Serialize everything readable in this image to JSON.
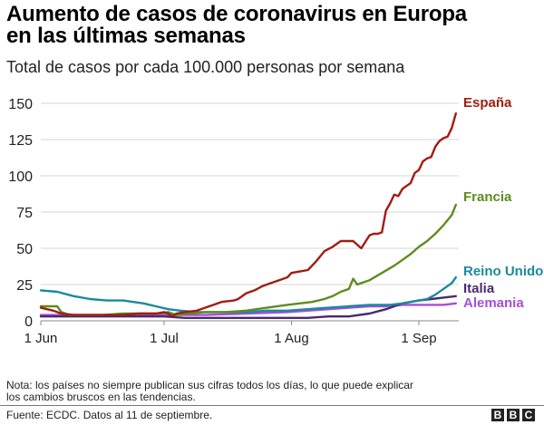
{
  "title_line1": "Aumento de casos de coronavirus en Europa",
  "title_line2": "en las últimas semanas",
  "subtitle": "Total de casos por cada 100.000 personas por semana",
  "note_line1": "Nota: los países no siempre publican sus cifras todos los días, lo que puede explicar",
  "note_line2": "los cambios bruscos en las tendencias.",
  "source": "Fuente: ECDC. Datos al 11 de septiembre.",
  "logo": [
    "B",
    "B",
    "C"
  ],
  "chart_data": {
    "type": "line",
    "title": "Aumento de casos de coronavirus en Europa en las últimas semanas",
    "subtitle": "Total de casos por cada 100.000 personas por semana",
    "xlabel": "",
    "ylabel": "",
    "x_unit": "days since 1 Jun",
    "xlim": [
      0,
      101
    ],
    "ylim": [
      0,
      150
    ],
    "yticks": [
      0,
      25,
      50,
      75,
      100,
      125,
      150
    ],
    "ytick_labels": [
      "0",
      "25",
      "50",
      "75",
      "100",
      "125",
      "150"
    ],
    "xticks": [
      0,
      30,
      61,
      92
    ],
    "xtick_labels": [
      "1 Jun",
      "1 Jul",
      "1 Aug",
      "1 Sep"
    ],
    "grid": true,
    "legend": "direct-labels-right",
    "series": [
      {
        "name": "España",
        "color": "#a01d12",
        "x": [
          0,
          3,
          5,
          8,
          12,
          16,
          20,
          24,
          28,
          30,
          31,
          32,
          33,
          35,
          38,
          41,
          44,
          47,
          48,
          50,
          52,
          54,
          56,
          58,
          60,
          61,
          63,
          65,
          67,
          69,
          71,
          73,
          74,
          76,
          78,
          80,
          81,
          82,
          83,
          84,
          85,
          86,
          87,
          88,
          89,
          90,
          91,
          92,
          93,
          94,
          95,
          96,
          97,
          98,
          99,
          100,
          101
        ],
        "y": [
          9,
          7,
          5,
          4,
          4,
          4,
          4,
          5,
          5,
          6,
          5,
          3,
          5,
          6,
          7,
          10,
          13,
          14,
          15,
          19,
          21,
          24,
          26,
          28,
          30,
          33,
          34,
          35,
          41,
          48,
          51,
          55,
          55,
          55,
          50,
          59,
          60,
          60,
          61,
          76,
          81,
          87,
          86,
          91,
          93,
          95,
          102,
          104,
          110,
          112,
          113,
          120,
          124,
          126,
          127,
          133,
          143
        ]
      },
      {
        "name": "Francia",
        "color": "#5e8c1e",
        "x": [
          0,
          2,
          4,
          5,
          7,
          10,
          15,
          20,
          25,
          29,
          31,
          33,
          36,
          40,
          45,
          50,
          55,
          60,
          63,
          66,
          69,
          71,
          73,
          75,
          76,
          77,
          78,
          80,
          83,
          86,
          88,
          90,
          92,
          94,
          96,
          98,
          100,
          101
        ],
        "y": [
          10,
          10,
          10,
          6,
          4,
          4,
          4,
          5,
          5,
          5,
          6,
          4,
          5,
          6,
          6,
          7,
          9,
          11,
          12,
          13,
          15,
          17,
          20,
          22,
          29,
          25,
          26,
          28,
          33,
          38,
          42,
          46,
          51,
          55,
          60,
          66,
          73,
          80
        ]
      },
      {
        "name": "Reino Unido",
        "color": "#1a8a9e",
        "x": [
          0,
          4,
          8,
          12,
          16,
          20,
          25,
          28,
          31,
          34,
          38,
          45,
          50,
          55,
          60,
          65,
          70,
          75,
          80,
          85,
          88,
          90,
          92,
          94,
          96,
          98,
          100,
          101
        ],
        "y": [
          21,
          20,
          17,
          15,
          14,
          14,
          12,
          10,
          8,
          7,
          6,
          6,
          6,
          7,
          7,
          8,
          9,
          10,
          11,
          11,
          12,
          13,
          14,
          15,
          18,
          22,
          26,
          30
        ]
      },
      {
        "name": "Italia",
        "color": "#4a2a6e",
        "x": [
          0,
          10,
          20,
          30,
          35,
          40,
          50,
          60,
          65,
          70,
          75,
          80,
          84,
          88,
          92,
          95,
          98,
          101
        ],
        "y": [
          3,
          3,
          3,
          3,
          2,
          2,
          2,
          2,
          2,
          3,
          3,
          5,
          8,
          12,
          14,
          15,
          16,
          17
        ]
      },
      {
        "name": "Alemania",
        "color": "#a64ddb",
        "x": [
          0,
          10,
          20,
          30,
          35,
          40,
          50,
          60,
          65,
          70,
          75,
          80,
          84,
          88,
          92,
          95,
          98,
          101
        ],
        "y": [
          4,
          4,
          4,
          4,
          4,
          4,
          5,
          6,
          7,
          8,
          9,
          10,
          10,
          11,
          11,
          11,
          11,
          12
        ]
      }
    ]
  }
}
